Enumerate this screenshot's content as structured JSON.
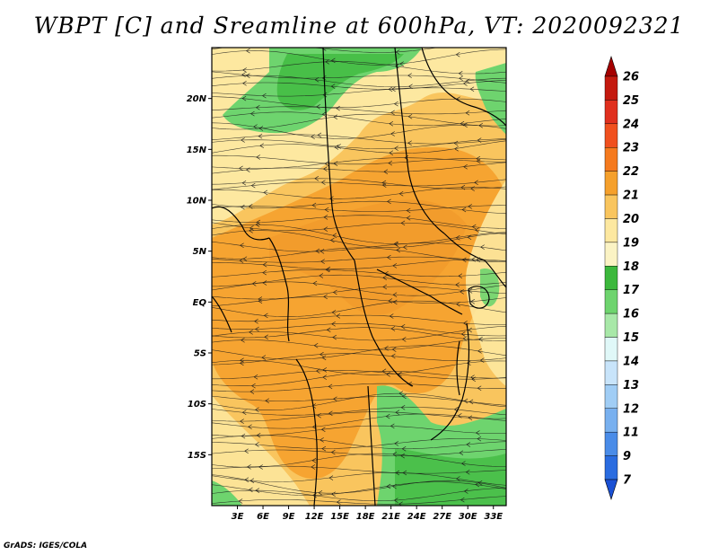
{
  "title": "WBPT [C] and Sreamline at 600hPa, VT: 2020092321",
  "credit": "GrADS: IGES/COLA",
  "axes": {
    "lat_labels": [
      "20N",
      "15N",
      "10N",
      "5N",
      "EQ",
      "5S",
      "10S",
      "15S"
    ],
    "lat_values": [
      20,
      15,
      10,
      5,
      0,
      -5,
      -10,
      -15
    ],
    "lon_labels": [
      "3E",
      "6E",
      "9E",
      "12E",
      "15E",
      "18E",
      "21E",
      "24E",
      "27E",
      "30E",
      "33E"
    ],
    "lon_values": [
      3,
      6,
      9,
      12,
      15,
      18,
      21,
      24,
      27,
      30,
      33
    ],
    "lat_range": [
      -20,
      25
    ],
    "lon_range": [
      0,
      34.5
    ]
  },
  "colorbar": {
    "labels": [
      "26",
      "25",
      "24",
      "23",
      "22",
      "21",
      "20",
      "19",
      "18",
      "17",
      "16",
      "15",
      "14",
      "13",
      "12",
      "11",
      "9",
      "7"
    ],
    "colors": [
      "#a50000",
      "#c41a0f",
      "#e0301e",
      "#f0501e",
      "#f57a1e",
      "#f5a02c",
      "#f9c55e",
      "#fde8a0",
      "#fbf3c4",
      "#3cb83c",
      "#6ed46e",
      "#a8e8a8",
      "#e0f8f8",
      "#c8e4fa",
      "#a0cdf5",
      "#78b0ef",
      "#4a8ce8",
      "#2a6ce0",
      "#1a50d4"
    ]
  },
  "field_colors": {
    "green": "#6ed46e",
    "dark_green": "#3cb83c",
    "pale_yellow": "#fde8a0",
    "light_orange": "#f9c55e",
    "orange": "#f5a02c",
    "deep_orange": "#ee9528"
  }
}
